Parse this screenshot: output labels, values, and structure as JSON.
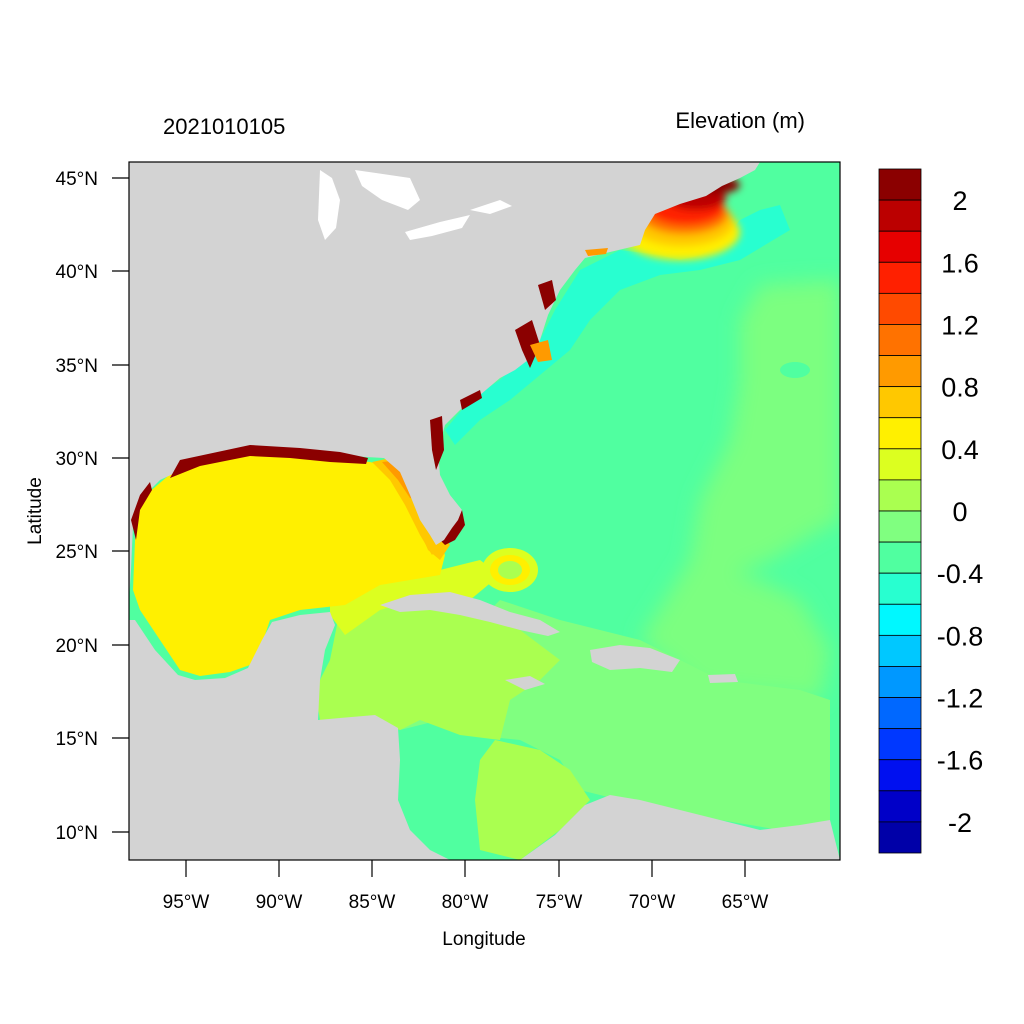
{
  "header": {
    "timestamp": "2021010105",
    "variable_title": "Elevation (m)"
  },
  "axes": {
    "xlabel": "Longitude",
    "ylabel": "Latitude",
    "x_ticks": [
      "95°W",
      "90°W",
      "85°W",
      "80°W",
      "75°W",
      "70°W",
      "65°W"
    ],
    "y_ticks": [
      "45°N",
      "40°N",
      "35°N",
      "30°N",
      "25°N",
      "20°N",
      "15°N",
      "10°N"
    ]
  },
  "colorbar": {
    "labels": [
      "2",
      "1.6",
      "1.2",
      "0.8",
      "0.4",
      "0",
      "-0.4",
      "-0.8",
      "-1.2",
      "-1.6",
      "-2"
    ],
    "colors": [
      "#8b0000",
      "#bb0000",
      "#e60000",
      "#ff2000",
      "#ff4a00",
      "#ff7200",
      "#ff9a00",
      "#ffc800",
      "#fff000",
      "#dcff20",
      "#aaff50",
      "#80ff80",
      "#50ffa0",
      "#28ffd0",
      "#00f8ff",
      "#00c8ff",
      "#0098ff",
      "#0068ff",
      "#0038ff",
      "#0010f0",
      "#0000c8",
      "#0000a8"
    ]
  },
  "colors": {
    "land": "#d3d3d3",
    "ocean_base": "#50ffa0"
  }
}
